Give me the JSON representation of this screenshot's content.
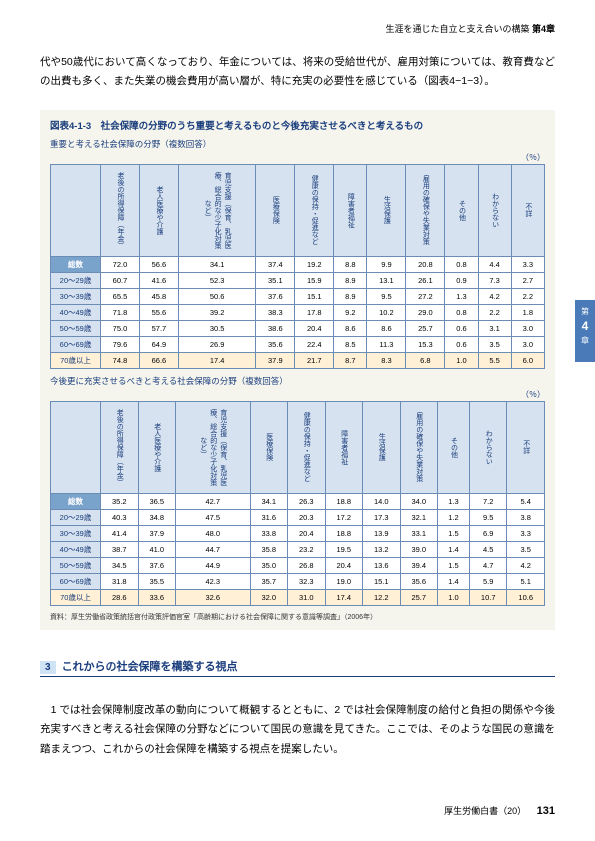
{
  "header": {
    "breadcrumb": "生涯を通じた自立と支え合いの構築",
    "chapter": "第4章"
  },
  "body_paragraph1": "代や50歳代において高くなっており、年金については、将来の受給世代が、雇用対策については、教育費などの出費も多く、また失業の機会費用が高い層が、特に充実の必要性を感じている（図表4−1−3）。",
  "figure": {
    "title": "図表4-1-3　社会保障の分野のうち重要と考えるものと今後充実させるべきと考えるもの",
    "unit": "（％）",
    "columns": [
      "",
      "老後の所得保障（年金）",
      "老人医療や介護",
      "育児支援（保育、乳児医療、総合的な少子化対策など）",
      "医療保険",
      "健康の保持・促進など",
      "障害者福祉",
      "生活保護",
      "雇用の確保や失業対策",
      "その他",
      "わからない",
      "不詳"
    ],
    "table1": {
      "subtitle": "重要と考える社会保障の分野（複数回答）",
      "rows": [
        {
          "label": "総数",
          "vals": [
            72.0,
            56.6,
            34.1,
            37.4,
            19.2,
            8.8,
            9.9,
            20.8,
            0.8,
            4.4,
            3.3
          ],
          "total": true
        },
        {
          "label": "20～29歳",
          "vals": [
            60.7,
            41.6,
            52.3,
            35.1,
            15.9,
            8.9,
            13.1,
            26.1,
            0.9,
            7.3,
            2.7
          ]
        },
        {
          "label": "30～39歳",
          "vals": [
            65.5,
            45.8,
            50.6,
            37.6,
            15.1,
            8.9,
            9.5,
            27.2,
            1.3,
            4.2,
            2.2
          ]
        },
        {
          "label": "40～49歳",
          "vals": [
            71.8,
            55.6,
            39.2,
            38.3,
            17.8,
            9.2,
            10.2,
            29.0,
            0.8,
            2.2,
            1.8
          ]
        },
        {
          "label": "50～59歳",
          "vals": [
            75.0,
            57.7,
            30.5,
            38.6,
            20.4,
            8.6,
            8.6,
            25.7,
            0.6,
            3.1,
            3.0
          ]
        },
        {
          "label": "60～69歳",
          "vals": [
            79.6,
            64.9,
            26.9,
            35.6,
            22.4,
            8.5,
            11.3,
            15.3,
            0.6,
            3.5,
            3.0
          ]
        },
        {
          "label": "70歳以上",
          "vals": [
            74.8,
            66.6,
            17.4,
            37.9,
            21.7,
            8.7,
            8.3,
            6.8,
            1.0,
            5.5,
            6.0
          ],
          "last": true
        }
      ]
    },
    "table2": {
      "subtitle": "今後更に充実させるべきと考える社会保障の分野（複数回答）",
      "rows": [
        {
          "label": "総数",
          "vals": [
            35.2,
            36.5,
            42.7,
            34.1,
            26.3,
            18.8,
            14.0,
            34.0,
            1.3,
            7.2,
            5.4
          ],
          "total": true
        },
        {
          "label": "20～29歳",
          "vals": [
            40.3,
            34.8,
            47.5,
            31.6,
            20.3,
            17.2,
            17.3,
            32.1,
            1.2,
            9.5,
            3.8
          ]
        },
        {
          "label": "30～39歳",
          "vals": [
            41.4,
            37.9,
            48.0,
            33.8,
            20.4,
            18.8,
            13.9,
            33.1,
            1.5,
            6.9,
            3.3
          ]
        },
        {
          "label": "40～49歳",
          "vals": [
            38.7,
            41.0,
            44.7,
            35.8,
            23.2,
            19.5,
            13.2,
            39.0,
            1.4,
            4.5,
            3.5
          ]
        },
        {
          "label": "50～59歳",
          "vals": [
            34.5,
            37.6,
            44.9,
            35.0,
            26.8,
            20.4,
            13.6,
            39.4,
            1.5,
            4.7,
            4.2
          ]
        },
        {
          "label": "60～69歳",
          "vals": [
            31.8,
            35.5,
            42.3,
            35.7,
            32.3,
            19.0,
            15.1,
            35.6,
            1.4,
            5.9,
            5.1
          ]
        },
        {
          "label": "70歳以上",
          "vals": [
            28.6,
            33.6,
            32.6,
            32.0,
            31.0,
            17.4,
            12.2,
            25.7,
            1.0,
            10.7,
            10.6
          ],
          "last": true
        }
      ]
    },
    "source": "資料：厚生労働省政策統括官付政策評価官室「高齢期における社会保障に関する意識等調査」（2006年）"
  },
  "section3": {
    "num": "3",
    "title": "これからの社会保障を構築する視点",
    "paragraph": "　1 では社会保障制度改革の動向について概観するとともに、2 では社会保障制度の給付と負担の関係や今後充実すべきと考える社会保障の分野などについて国民の意識を見てきた。ここでは、そのような国民の意識を踏まえつつ、これからの社会保障を構築する視点を提案したい。"
  },
  "side_tab": {
    "pre": "第",
    "num": "4",
    "post": "章"
  },
  "footer": {
    "book": "厚生労働白書（20）",
    "page": "131"
  }
}
